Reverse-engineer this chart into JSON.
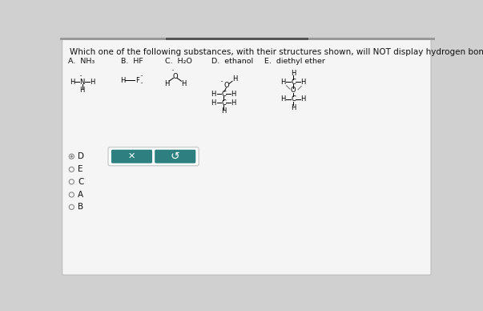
{
  "title": "Which one of the following substances, with their structures shown, will NOT display hydrogen bonding?",
  "bg_color": "#d0d0d0",
  "card_color": "#f0f0f0",
  "options_header": [
    "A.  NH₃",
    "B.  HF",
    "C.  H₂O",
    "D.  ethanol",
    "E.  diethyl ether"
  ],
  "radio_options": [
    "D",
    "E",
    "C",
    "A",
    "B"
  ],
  "selected_radio": "D",
  "button_color": "#2e7f7f",
  "title_fontsize": 7.5,
  "header_fontsize": 6.8,
  "radio_fontsize": 7.5,
  "structure_fontsize": 6.0
}
